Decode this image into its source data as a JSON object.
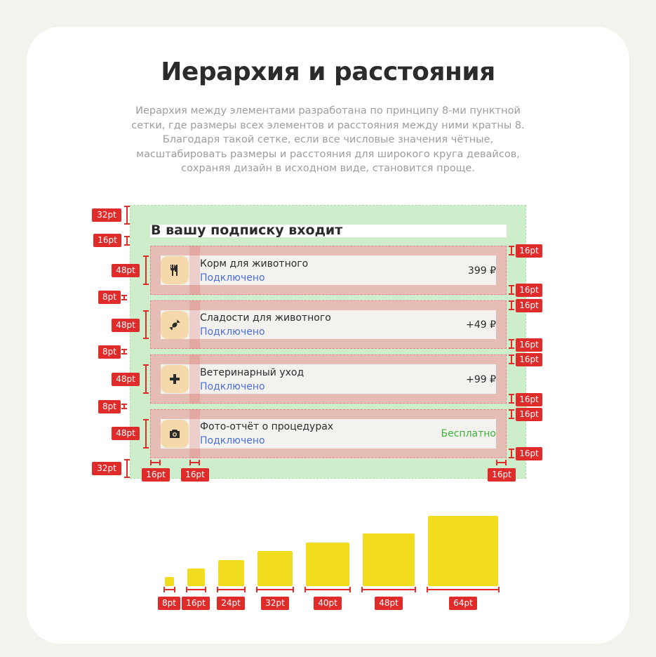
{
  "title": "Иерархия и расстояния",
  "description": [
    "Иерархия между элементами разработана по принципу 8-ми пунктной",
    "сетки, где размеры всех элементов и расстояния между ними кратны 8.",
    "Благодаря такой сетке, если все числовые значения чётные,",
    "масштабировать размеры и расстояния для широкого круга девайсов,",
    "сохраняя дизайн в исходном виде, становится проще."
  ],
  "subscription": {
    "heading": "В вашу подписку входит",
    "items": [
      {
        "icon": "cutlery-icon",
        "name": "Корм для животного",
        "status": "Подключено",
        "price": "399 ₽",
        "free": false
      },
      {
        "icon": "candy-icon",
        "name": "Сладости для животного",
        "status": "Подключено",
        "price": "+49 ₽",
        "free": false
      },
      {
        "icon": "medical-cross-icon",
        "name": "Ветеринарный уход",
        "status": "Подключено",
        "price": "+99 ₽",
        "free": false
      },
      {
        "icon": "camera-icon",
        "name": "Фото-отчёт о процедурах",
        "status": "Подключено",
        "price": "Бесплатно",
        "free": true
      }
    ]
  },
  "spacing_labels": {
    "top": "32pt",
    "below_heading": "16pt",
    "row_height": "48pt",
    "gap": "8pt",
    "row_padding": "16pt",
    "bottom": "32pt",
    "left_padding": "16pt",
    "icon_gap": "16pt",
    "right_padding": "16pt"
  },
  "scale": {
    "labels": [
      "8pt",
      "16pt",
      "24pt",
      "32pt",
      "40pt",
      "48pt",
      "64pt"
    ]
  },
  "colors": {
    "accent": "#e02b2b",
    "link": "#4a6fd6",
    "free": "#3db33d",
    "square": "#f1dd1e",
    "icon_bg": "#f6d9aa"
  }
}
